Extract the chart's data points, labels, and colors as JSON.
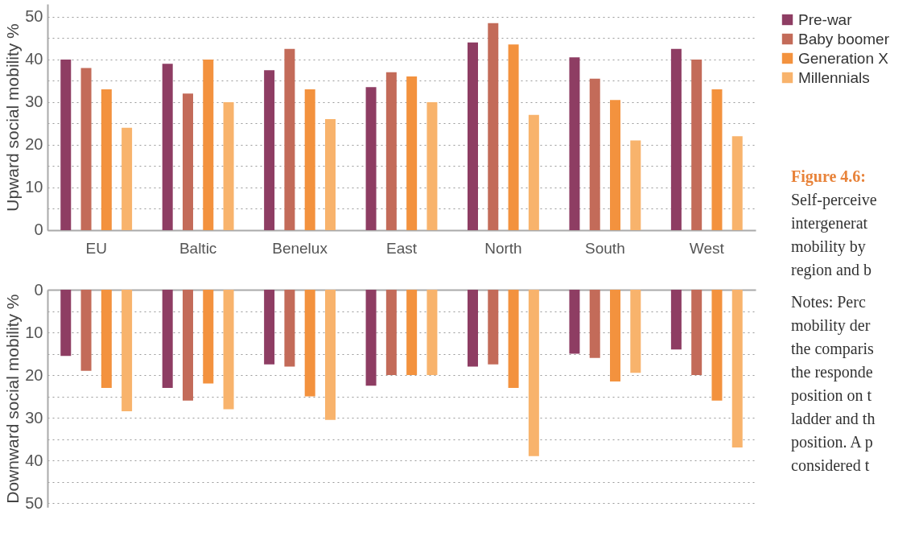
{
  "chart_data": [
    {
      "type": "bar",
      "ylabel": "Upward social mobility %",
      "categories": [
        "EU",
        "Baltic",
        "Benelux",
        "East",
        "North",
        "South",
        "West"
      ],
      "series": [
        {
          "name": "Pre-war",
          "color": "#8e3d63",
          "values": [
            40,
            39,
            37.5,
            33.5,
            44,
            40.5,
            42.5
          ]
        },
        {
          "name": "Baby boomer",
          "color": "#c36b59",
          "values": [
            38,
            32,
            42.5,
            37,
            48.5,
            35.5,
            40
          ]
        },
        {
          "name": "Generation X",
          "color": "#f3923e",
          "values": [
            33,
            40,
            33,
            36,
            43.5,
            30.5,
            33
          ]
        },
        {
          "name": "Millennials",
          "color": "#f8b36c",
          "values": [
            24,
            30,
            26,
            30,
            27,
            21,
            22
          ]
        }
      ],
      "ylim": [
        0,
        53
      ],
      "yticks": [
        0,
        {
          "value": 5,
          "label": null
        },
        10,
        {
          "value": 15,
          "label": null
        },
        20,
        {
          "value": 25,
          "label": null
        },
        30,
        {
          "value": 35,
          "label": null
        },
        40,
        {
          "value": 45,
          "label": null
        },
        50
      ],
      "grid": "y",
      "legend": "right",
      "annotations": [
        "Figure 4.6:",
        "Self-perceive",
        "intergenerat",
        "mobility by",
        "region and b"
      ]
    },
    {
      "type": "bar",
      "ylabel": "Downward social mobility %",
      "categories": [
        null,
        null,
        null,
        null,
        null,
        null,
        null
      ],
      "series": [
        {
          "name": "Pre-war",
          "color": "#8e3d63",
          "values": [
            15.5,
            23,
            17.5,
            22.5,
            18,
            15,
            14
          ]
        },
        {
          "name": "Baby boomer",
          "color": "#c36b59",
          "values": [
            19,
            26,
            18,
            20,
            17.5,
            16,
            20
          ]
        },
        {
          "name": "Generation X",
          "color": "#f3923e",
          "values": [
            23,
            22,
            25,
            20,
            23,
            21.5,
            26
          ]
        },
        {
          "name": "Millennials",
          "color": "#f8b36c",
          "values": [
            28.5,
            28,
            30.5,
            20,
            39,
            19.5,
            37
          ]
        }
      ],
      "ylim": [
        51,
        0
      ],
      "yticks": [
        0,
        {
          "value": 5,
          "label": null
        },
        10,
        {
          "value": 15,
          "label": null
        },
        20,
        {
          "value": 25,
          "label": null
        },
        30,
        {
          "value": 35,
          "label": null
        },
        40,
        {
          "value": 45,
          "label": null
        },
        50
      ],
      "grid": "y",
      "tick_labels": "y",
      "annotations": [
        "Notes: Perc",
        "mobility der",
        "the comparis",
        "the responde",
        "position on t",
        "ladder and th",
        "position. A p",
        "considered t"
      ]
    }
  ]
}
